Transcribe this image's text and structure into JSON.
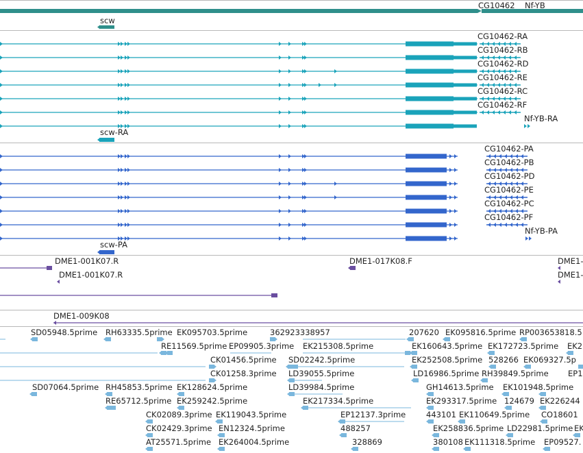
{
  "colors": {
    "gene": "#2f8f8b",
    "mrna": "#1aa3ba",
    "protein": "#3366cc",
    "clone": "#6a4ea0",
    "est": "#7ab7dd",
    "divider": "#b8b8b8"
  },
  "tracks": {
    "genes": {
      "labels": [
        "CG10462",
        "Nf-YB",
        "scw"
      ]
    },
    "transcripts": {
      "labels": [
        "CG10462-RA",
        "CG10462-RB",
        "CG10462-RD",
        "CG10462-RE",
        "CG10462-RC",
        "CG10462-RF",
        "Nf-YB-RA",
        "scw-RA"
      ]
    },
    "proteins": {
      "labels": [
        "CG10462-PA",
        "CG10462-PB",
        "CG10462-PD",
        "CG10462-PE",
        "CG10462-PC",
        "CG10462-PF",
        "Nf-YB-PA",
        "scw-PA"
      ]
    },
    "clones": {
      "labels": [
        "DME1-001K07.R",
        "DME1-001K07.R",
        "DME1-017K08.F",
        "DME1-",
        "DME1-",
        "DME1-009K08"
      ]
    },
    "ests": {
      "labels": [
        "SD05948.5prime",
        "RH63335.5prime",
        "EK095703.5prime",
        "362923338957",
        "207620",
        "EK095816.5prime",
        "RP003653818.5",
        "RE11569.5prime",
        "EP09905.3prime",
        "EK215308.5prime",
        "EK160643.5prime",
        "EK172723.5prime",
        "EK2",
        "CK01456.5prime",
        "SD02242.5prime",
        "EK252508.5prime",
        "528266",
        "EK069327.5p",
        "CK01258.3prime",
        "LD39055.5prime",
        "LD16986.5prime",
        "RH39849.5prime",
        "EP1",
        "SD07064.5prime",
        "RH45853.5prime",
        "EK128624.5prime",
        "LD39984.5prime",
        "GH14613.5prime",
        "EK101948.5prime",
        "RE65712.5prime",
        "EK259242.5prime",
        "EK217334.5prime",
        "EK293317.5prime",
        "124679",
        "EK226244",
        "CK02089.3prime",
        "EK119043.5prime",
        "EP12137.3prime",
        "443101",
        "EK110649.5prime",
        "CO18601",
        "CK02429.3prime",
        "EN12324.5prime",
        "488257",
        "EK258836.5prime",
        "LD22981.5prime",
        "EK",
        "AT25571.5prime",
        "EK264004.5prime",
        "328869",
        "380108",
        "EK111318.5prime",
        "EP09527."
      ]
    }
  }
}
